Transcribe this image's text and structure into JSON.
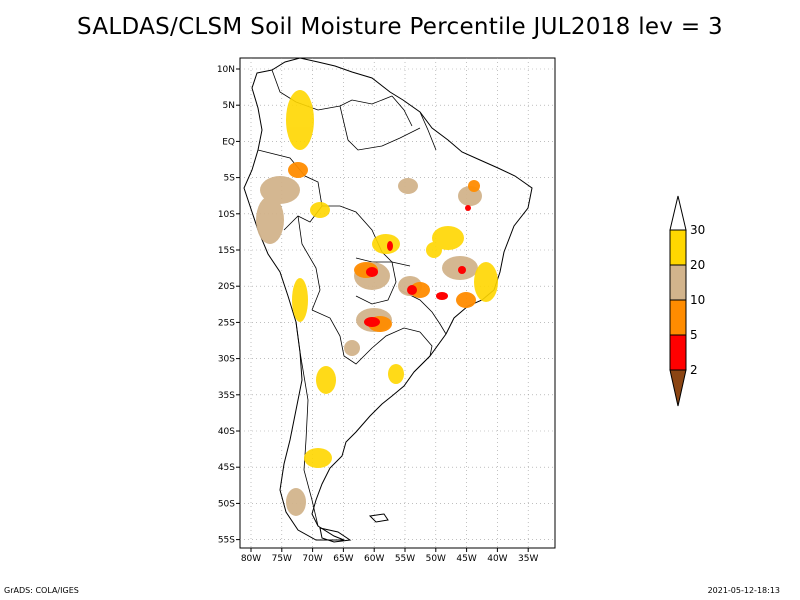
{
  "title": "SALDAS/CLSM Soil Moisture Percentile JUL2018 lev = 3",
  "lat_labels": [
    "10N",
    "5N",
    "EQ",
    "5S",
    "10S",
    "15S",
    "20S",
    "25S",
    "30S",
    "35S",
    "40S",
    "45S",
    "50S",
    "55S"
  ],
  "lon_labels": [
    "80W",
    "75W",
    "70W",
    "65W",
    "60W",
    "55W",
    "50W",
    "45W",
    "40W",
    "35W"
  ],
  "colorbar": {
    "labels": [
      "2",
      "5",
      "10",
      "20",
      "30"
    ],
    "colors": {
      "below_2": "#8b4513",
      "c2_5": "#ff0000",
      "c5_10": "#ff8c00",
      "c10_20": "#d2b48c",
      "c20_30": "#ffd700",
      "above_30": "#ffffff"
    }
  },
  "footer": {
    "left": "GrADS: COLA/IGES",
    "right": "2021-05-12-18:13"
  }
}
